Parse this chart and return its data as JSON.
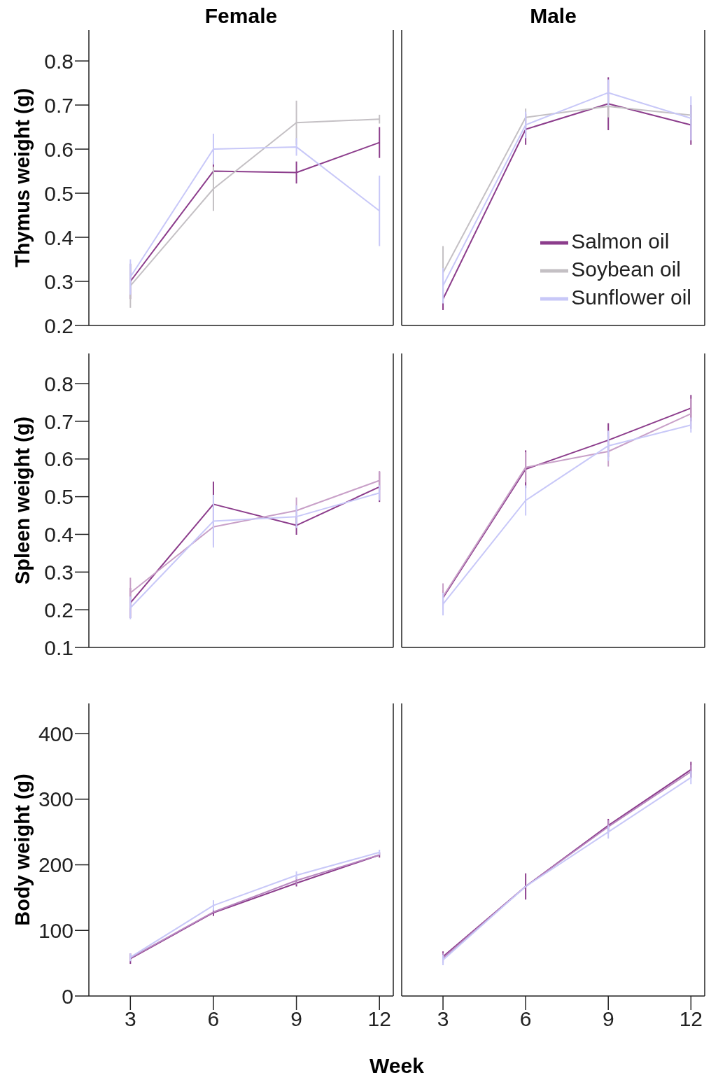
{
  "chart_data": [
    {
      "type": "line",
      "title": "Female",
      "ylabel": "Thymus weight (g)",
      "x": [
        3,
        6,
        9,
        12
      ],
      "xlim": [
        1.5,
        12.5
      ],
      "xticks": [
        3,
        6,
        9,
        12
      ],
      "ylim": [
        0.2,
        0.87
      ],
      "yticks": [
        0.2,
        0.3,
        0.4,
        0.5,
        0.6,
        0.7,
        0.8
      ],
      "tick_labels": "y",
      "marker": "none",
      "line_style": "solid",
      "series": [
        {
          "color": "#8c3d8c",
          "values": [
            0.3,
            0.55,
            0.547,
            0.615
          ],
          "errors": [
            0.04,
            0.02,
            0.025,
            0.035
          ]
        },
        {
          "color": "#c4c0c4",
          "values": [
            0.29,
            0.51,
            0.66,
            0.668
          ],
          "errors": [
            0.05,
            0.05,
            0.05,
            0.01
          ]
        },
        {
          "color": "#c8c8f8",
          "values": [
            0.31,
            0.6,
            0.605,
            0.46
          ],
          "errors": [
            0.04,
            0.035,
            0.02,
            0.08
          ]
        }
      ]
    },
    {
      "type": "line",
      "title": "Male",
      "x": [
        3,
        6,
        9,
        12
      ],
      "xlim": [
        1.5,
        12.5
      ],
      "xticks": [
        3,
        6,
        9,
        12
      ],
      "ylim": [
        0.2,
        0.87
      ],
      "yticks": [
        0.2,
        0.3,
        0.4,
        0.5,
        0.6,
        0.7,
        0.8
      ],
      "tick_labels": false,
      "marker": "none",
      "line_style": "solid",
      "legend": "bottom right",
      "series": [
        {
          "name": "Salmon oil",
          "color": "#8c3d8c",
          "values": [
            0.26,
            0.645,
            0.703,
            0.655
          ],
          "errors": [
            0.025,
            0.035,
            0.06,
            0.045
          ]
        },
        {
          "name": "Soybean oil",
          "color": "#c4c0c4",
          "values": [
            0.32,
            0.672,
            0.697,
            0.677
          ],
          "errors": [
            0.06,
            0.02,
            0.025,
            0.02
          ]
        },
        {
          "name": "Sunflower oil",
          "color": "#c8c8f8",
          "values": [
            0.29,
            0.655,
            0.728,
            0.67
          ],
          "errors": [
            0.04,
            0.03,
            0.03,
            0.05
          ]
        }
      ]
    },
    {
      "type": "line",
      "ylabel": "Spleen weight (g)",
      "x": [
        3,
        6,
        9,
        12
      ],
      "xlim": [
        1.5,
        12.5
      ],
      "xticks": [
        3,
        6,
        9,
        12
      ],
      "ylim": [
        0.1,
        0.88
      ],
      "yticks": [
        0.1,
        0.2,
        0.3,
        0.4,
        0.5,
        0.6,
        0.7,
        0.8
      ],
      "tick_labels": "y",
      "marker": "none",
      "line_style": "solid",
      "series": [
        {
          "color": "#8c3d8c",
          "values": [
            0.218,
            0.48,
            0.424,
            0.526
          ],
          "errors": [
            0.04,
            0.06,
            0.025,
            0.04
          ]
        },
        {
          "color": "#c8a0c8",
          "values": [
            0.245,
            0.42,
            0.463,
            0.543
          ],
          "errors": [
            0.04,
            0.05,
            0.035,
            0.025
          ]
        },
        {
          "color": "#c8c8f8",
          "values": [
            0.205,
            0.435,
            0.447,
            0.51
          ],
          "errors": [
            0.03,
            0.07,
            0.03,
            0.02
          ]
        }
      ]
    },
    {
      "type": "line",
      "x": [
        3,
        6,
        9,
        12
      ],
      "xlim": [
        1.5,
        12.5
      ],
      "xticks": [
        3,
        6,
        9,
        12
      ],
      "ylim": [
        0.1,
        0.88
      ],
      "yticks": [
        0.1,
        0.2,
        0.3,
        0.4,
        0.5,
        0.6,
        0.7,
        0.8
      ],
      "tick_labels": false,
      "marker": "none",
      "line_style": "solid",
      "series": [
        {
          "color": "#8c3d8c",
          "values": [
            0.232,
            0.573,
            0.65,
            0.735
          ],
          "errors": [
            0.02,
            0.05,
            0.045,
            0.035
          ]
        },
        {
          "color": "#c8a0c8",
          "values": [
            0.235,
            0.578,
            0.62,
            0.72
          ],
          "errors": [
            0.035,
            0.04,
            0.04,
            0.04
          ]
        },
        {
          "color": "#c8c8f8",
          "values": [
            0.215,
            0.49,
            0.635,
            0.69
          ],
          "errors": [
            0.03,
            0.04,
            0.04,
            0.02
          ]
        }
      ]
    },
    {
      "type": "line",
      "ylabel": "Body weight (g)",
      "xlabel": "Week",
      "x": [
        3,
        6,
        9,
        12
      ],
      "xlim": [
        1.5,
        12.5
      ],
      "xticks": [
        3,
        6,
        9,
        12
      ],
      "ylim": [
        0,
        446
      ],
      "yticks": [
        0,
        100,
        200,
        300,
        400
      ],
      "marker": "none",
      "line_style": "solid",
      "series": [
        {
          "color": "#8c3d8c",
          "values": [
            57,
            127,
            172,
            215
          ],
          "errors": [
            8,
            5,
            5,
            4
          ]
        },
        {
          "color": "#b888c0",
          "values": [
            58,
            128,
            176,
            215
          ],
          "errors": [
            null,
            null,
            6,
            null
          ]
        },
        {
          "color": "#c8c8f8",
          "values": [
            59,
            138,
            184,
            219
          ],
          "errors": [
            6,
            8,
            6,
            4
          ]
        }
      ]
    },
    {
      "type": "line",
      "x": [
        3,
        6,
        9,
        12
      ],
      "xlim": [
        1.5,
        12.5
      ],
      "xticks": [
        3,
        6,
        9,
        12
      ],
      "ylim": [
        0,
        446
      ],
      "yticks": [
        0,
        100,
        200,
        300,
        400
      ],
      "tick_labels": "x",
      "marker": "none",
      "line_style": "solid",
      "series": [
        {
          "color": "#8c3d8c",
          "values": [
            60,
            167,
            260,
            345
          ],
          "errors": [
            8,
            20,
            10,
            12
          ]
        },
        {
          "color": "#b888c0",
          "values": [
            58,
            167,
            258,
            342
          ],
          "errors": [
            8,
            null,
            10,
            10
          ]
        },
        {
          "color": "#c8c8f8",
          "values": [
            55,
            167,
            250,
            333
          ],
          "errors": [
            8,
            null,
            10,
            10
          ]
        }
      ]
    }
  ]
}
